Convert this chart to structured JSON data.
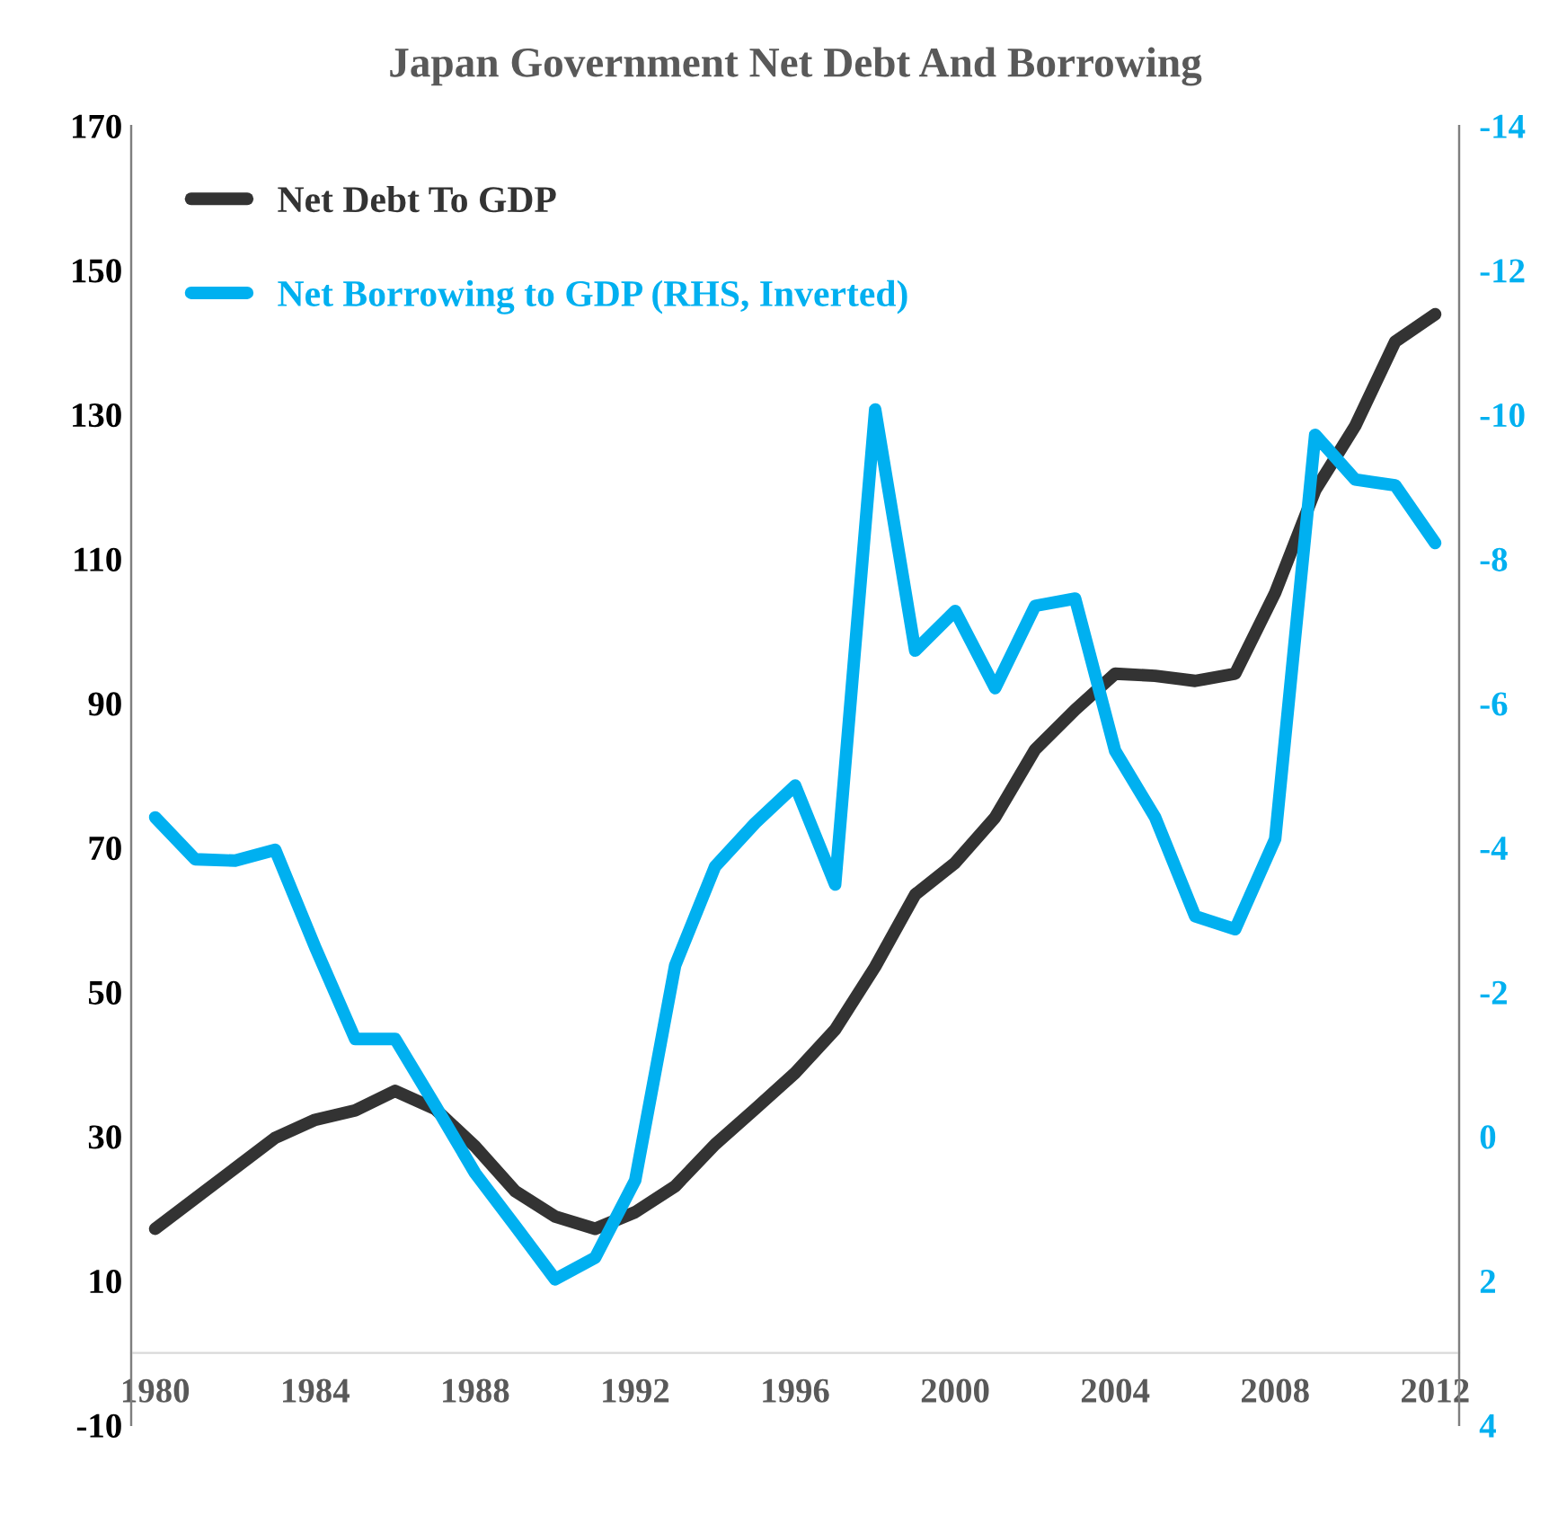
{
  "chart_data": {
    "type": "line",
    "title": "Japan Government Net Debt And Borrowing",
    "x": [
      1980,
      1981,
      1982,
      1983,
      1984,
      1985,
      1986,
      1987,
      1988,
      1989,
      1990,
      1991,
      1992,
      1993,
      1994,
      1995,
      1996,
      1997,
      1998,
      1999,
      2000,
      2001,
      2002,
      2003,
      2004,
      2005,
      2006,
      2007,
      2008,
      2009,
      2010,
      2011,
      2012
    ],
    "series": [
      {
        "name": "Net Debt To GDP",
        "color": "#333333",
        "values": [
          17.2,
          21.4,
          25.6,
          29.8,
          32.3,
          33.6,
          36.3,
          33.8,
          28.6,
          22.4,
          18.9,
          17.2,
          19.5,
          23.1,
          28.9,
          33.8,
          38.8,
          44.8,
          53.5,
          63.5,
          67.9,
          74.2,
          83.6,
          89.1,
          94.1,
          93.8,
          93.1,
          94.1,
          105.3,
          119.5,
          128.4,
          140.1,
          143.9
        ]
      },
      {
        "name": "Net Borrowing to GDP (RHS, Inverted)",
        "color": "#00b0f0",
        "axis": "y2",
        "values": [
          -4.42,
          -3.84,
          -3.82,
          -3.97,
          -2.62,
          -1.35,
          -1.35,
          -0.43,
          0.51,
          1.24,
          1.98,
          1.68,
          0.61,
          -2.37,
          -3.74,
          -4.34,
          -4.86,
          -3.49,
          -10.07,
          -6.73,
          -7.28,
          -6.21,
          -7.35,
          -7.45,
          -5.34,
          -4.42,
          -3.05,
          -2.87,
          -4.12,
          -9.72,
          -9.1,
          -9.02,
          -8.22
        ]
      }
    ],
    "xlim": [
      1979.4,
      2012.6
    ],
    "xticks": [
      1980,
      1984,
      1988,
      1992,
      1996,
      2000,
      2004,
      2008,
      2012
    ],
    "ylim": [
      -10,
      170
    ],
    "yticks": [
      -10,
      10,
      30,
      50,
      70,
      90,
      110,
      130,
      150,
      170
    ],
    "y2lim": [
      4,
      -14
    ],
    "y2ticks": [
      4,
      2,
      0,
      -2,
      -4,
      -6,
      -8,
      -10,
      -12,
      -14
    ],
    "legend": "top left",
    "grid": false
  }
}
